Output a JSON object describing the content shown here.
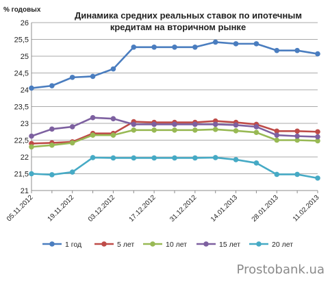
{
  "chart_data": {
    "type": "line",
    "title_lines": [
      "Динамика средних реальных ставок по ипотечным",
      "кредитам на вторичном рынке"
    ],
    "y_unit": "% годовых",
    "ylim": [
      21,
      26
    ],
    "yticks": [
      21,
      21.5,
      22,
      22.5,
      23,
      23.5,
      24,
      24.5,
      25,
      25.5,
      26
    ],
    "ytick_labels": [
      "21",
      "21,5",
      "22",
      "22,5",
      "23",
      "23,5",
      "24",
      "24,5",
      "25",
      "25,5",
      "26"
    ],
    "grid": true,
    "x": [
      "05.11.2012",
      "12.11.2012",
      "19.11.2012",
      "26.11.2012",
      "03.12.2012",
      "10.12.2012",
      "17.12.2012",
      "24.12.2012",
      "31.12.2012",
      "07.01.2013",
      "14.01.2013",
      "21.01.2013",
      "28.01.2013",
      "04.02.2013",
      "11.02.2013"
    ],
    "xtick_labels": [
      {
        "index": 0,
        "label": "05.11.2012"
      },
      {
        "index": 2,
        "label": "19.11.2012"
      },
      {
        "index": 4,
        "label": "03.12.2012"
      },
      {
        "index": 6,
        "label": "17.12.2012"
      },
      {
        "index": 8,
        "label": "31.12.2012"
      },
      {
        "index": 10,
        "label": "14.01.2013"
      },
      {
        "index": 12,
        "label": "28.01.2013"
      },
      {
        "index": 14,
        "label": "11.02.2013"
      }
    ],
    "legend_position": "bottom",
    "series": [
      {
        "name": "1 год",
        "color": "#4a7dbf",
        "values": [
          24.05,
          24.12,
          24.37,
          24.4,
          24.62,
          25.27,
          25.27,
          25.27,
          25.27,
          25.42,
          25.37,
          25.37,
          25.17,
          25.17,
          25.07
        ]
      },
      {
        "name": "5 лет",
        "color": "#be4b48",
        "values": [
          22.4,
          22.42,
          22.45,
          22.7,
          22.7,
          23.05,
          23.03,
          23.03,
          23.03,
          23.07,
          23.03,
          22.97,
          22.77,
          22.77,
          22.75
        ]
      },
      {
        "name": "10 лет",
        "color": "#98b954",
        "values": [
          22.3,
          22.35,
          22.42,
          22.65,
          22.65,
          22.8,
          22.8,
          22.8,
          22.8,
          22.82,
          22.78,
          22.73,
          22.5,
          22.5,
          22.48
        ]
      },
      {
        "name": "15 лет",
        "color": "#7d60a0",
        "values": [
          22.62,
          22.83,
          22.9,
          23.17,
          23.14,
          22.97,
          22.97,
          22.97,
          22.97,
          22.97,
          22.95,
          22.9,
          22.65,
          22.62,
          22.6
        ]
      },
      {
        "name": "20 лет",
        "color": "#46aac5",
        "values": [
          21.5,
          21.47,
          21.55,
          21.98,
          21.97,
          21.97,
          21.97,
          21.97,
          21.97,
          21.98,
          21.92,
          21.82,
          21.48,
          21.48,
          21.37
        ]
      }
    ]
  },
  "watermark": "Prostobank.ua"
}
